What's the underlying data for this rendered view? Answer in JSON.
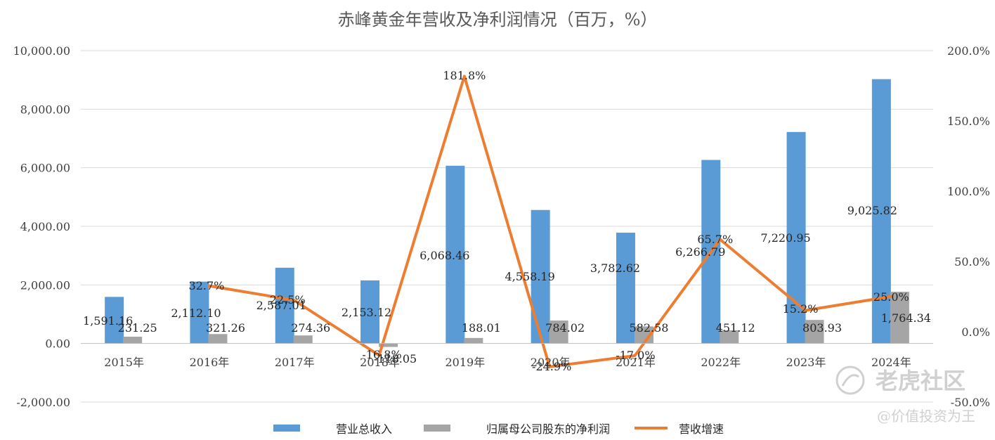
{
  "chart_data": {
    "type": "bar",
    "title": "赤峰黄金年营收及净利润情况（百万，%）",
    "categories": [
      "2015年",
      "2016年",
      "2017年",
      "2018年",
      "2019年",
      "2020年",
      "2021年",
      "2022年",
      "2023年",
      "2024年"
    ],
    "series": [
      {
        "name": "营业总收入",
        "type": "bar",
        "axis": "left",
        "color": "#5b9bd5",
        "values": [
          1591.16,
          2112.1,
          2587.01,
          2153.12,
          6068.46,
          4558.19,
          3782.62,
          6266.79,
          7220.95,
          9025.82
        ],
        "labels": [
          "1,591.16",
          "2,112.10",
          "2,587.01",
          "2,153.12",
          "6,068.46",
          "4,558.19",
          "3,782.62",
          "6,266.79",
          "7,220.95",
          "9,025.82"
        ]
      },
      {
        "name": "归属母公司股东的净利润",
        "type": "bar",
        "axis": "left",
        "color": "#a5a5a5",
        "values": [
          231.25,
          321.26,
          274.36,
          -118.05,
          188.01,
          784.02,
          582.58,
          451.12,
          803.93,
          1764.34
        ],
        "labels": [
          "231.25",
          "321.26",
          "274.36",
          "-118.05",
          "188.01",
          "784.02",
          "582.58",
          "451.12",
          "803.93",
          "1,764.34"
        ]
      },
      {
        "name": "营收增速",
        "type": "line",
        "axis": "right",
        "color": "#ed7d31",
        "values": [
          null,
          32.7,
          22.5,
          -16.8,
          181.8,
          -24.9,
          -17.0,
          65.7,
          15.2,
          25.0
        ],
        "labels": [
          "",
          "32.7%",
          "22.5%",
          "-16.8%",
          "181.8%",
          "-24.9%",
          "-17.0%",
          "65.7%",
          "15.2%",
          "25.0%"
        ]
      }
    ],
    "y_left": {
      "min": -2000,
      "max": 10000,
      "step": 2000,
      "ticks": [
        "-2,000.00",
        "0.00",
        "2,000.00",
        "4,000.00",
        "6,000.00",
        "8,000.00",
        "10,000.00"
      ]
    },
    "y_right": {
      "min": -50,
      "max": 200,
      "step": 50,
      "ticks": [
        "-50.0%",
        "0.0%",
        "50.0%",
        "100.0%",
        "150.0%",
        "200.0%"
      ]
    },
    "grid": true,
    "legend_position": "bottom"
  },
  "watermark": {
    "brand": "老虎社区",
    "handle": "@价值投资为王",
    "icon": "tiger-logo-icon"
  }
}
